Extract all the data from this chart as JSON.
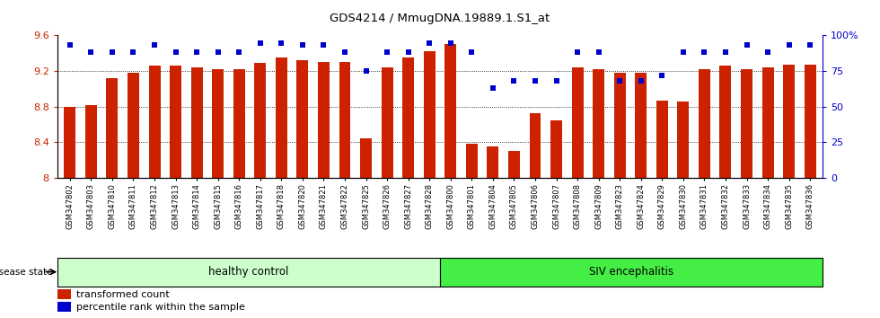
{
  "title": "GDS4214 / MmugDNA.19889.1.S1_at",
  "samples": [
    "GSM347802",
    "GSM347803",
    "GSM347810",
    "GSM347811",
    "GSM347812",
    "GSM347813",
    "GSM347814",
    "GSM347815",
    "GSM347816",
    "GSM347817",
    "GSM347818",
    "GSM347820",
    "GSM347821",
    "GSM347822",
    "GSM347825",
    "GSM347826",
    "GSM347827",
    "GSM347828",
    "GSM347800",
    "GSM347801",
    "GSM347804",
    "GSM347805",
    "GSM347806",
    "GSM347807",
    "GSM347808",
    "GSM347809",
    "GSM347823",
    "GSM347824",
    "GSM347829",
    "GSM347830",
    "GSM347831",
    "GSM347832",
    "GSM347833",
    "GSM347834",
    "GSM347835",
    "GSM347836"
  ],
  "bar_values": [
    8.8,
    8.82,
    9.12,
    9.18,
    9.26,
    9.26,
    9.24,
    9.22,
    9.22,
    9.29,
    9.35,
    9.32,
    9.3,
    9.3,
    8.44,
    9.24,
    9.35,
    9.42,
    9.5,
    8.38,
    8.35,
    8.3,
    8.73,
    8.65,
    9.24,
    9.22,
    9.18,
    9.18,
    8.87,
    8.86,
    9.22,
    9.26,
    9.22,
    9.24,
    9.27,
    9.27
  ],
  "percentile_values": [
    93,
    88,
    88,
    88,
    93,
    88,
    88,
    88,
    88,
    94,
    94,
    93,
    93,
    88,
    75,
    88,
    88,
    94,
    94,
    88,
    63,
    68,
    68,
    68,
    88,
    88,
    68,
    68,
    72,
    88,
    88,
    88,
    93,
    88,
    93,
    93
  ],
  "bar_color": "#cc2200",
  "percentile_color": "#0000cc",
  "ylim_left": [
    8.0,
    9.6
  ],
  "ylim_right": [
    0,
    100
  ],
  "yticks_left": [
    8.0,
    8.4,
    8.8,
    9.2,
    9.6
  ],
  "ytick_labels_left": [
    "8",
    "8.4",
    "8.8",
    "9.2",
    "9.6"
  ],
  "yticks_right": [
    0,
    25,
    50,
    75,
    100
  ],
  "ytick_labels_right": [
    "0",
    "25",
    "50",
    "75",
    "100%"
  ],
  "healthy_control_count": 18,
  "group1_label": "healthy control",
  "group2_label": "SIV encephalitis",
  "disease_state_label": "disease state",
  "legend_bar_label": "transformed count",
  "legend_pct_label": "percentile rank within the sample",
  "healthy_bg": "#ccffcc",
  "siv_bg": "#44ee44",
  "bar_width": 0.55
}
